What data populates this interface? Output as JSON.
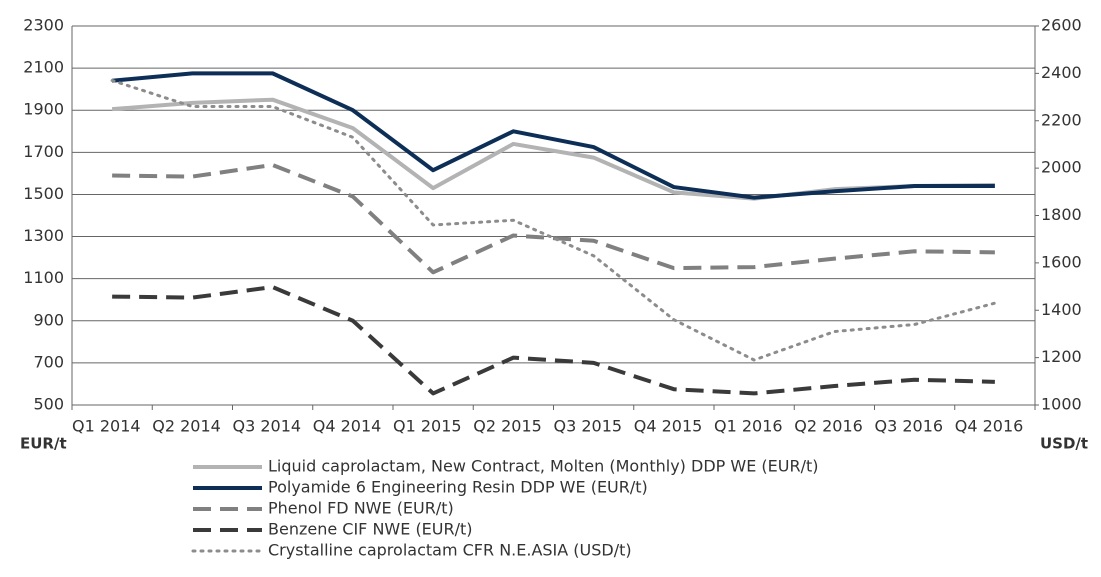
{
  "chart_data": {
    "type": "line",
    "categories": [
      "Q1 2014",
      "Q2 2014",
      "Q3 2014",
      "Q4 2014",
      "Q1 2015",
      "Q2 2015",
      "Q3 2015",
      "Q4 2015",
      "Q1 2016",
      "Q2 2016",
      "Q3 2016",
      "Q4 2016"
    ],
    "y_label": "EUR/t",
    "y2_label": "USD/t",
    "ylim": [
      500,
      2300
    ],
    "yticks": [
      500,
      700,
      900,
      1100,
      1300,
      1500,
      1700,
      1900,
      2100,
      2300
    ],
    "y2lim": [
      1000,
      2600
    ],
    "y2ticks": [
      1000,
      1200,
      1400,
      1600,
      1800,
      2000,
      2200,
      2400,
      2600
    ],
    "grid": true,
    "series": [
      {
        "name": "Liquid caprolactam, New Contract, Molten (Monthly) DDP WE (EUR/t)",
        "color": "#b3b3b3",
        "dash": "solid",
        "values": [
          1905,
          1935,
          1950,
          1815,
          1530,
          1740,
          1675,
          1510,
          1480,
          1525,
          1540,
          1545
        ]
      },
      {
        "name": "Polyamide 6 Engineering Resin DDP WE (EUR/t)",
        "color": "#0d2f57",
        "dash": "solid",
        "values": [
          2040,
          2075,
          2075,
          1900,
          1615,
          1800,
          1725,
          1535,
          1485,
          1515,
          1540,
          1540
        ]
      },
      {
        "name": "Phenol FD NWE (EUR/t)",
        "color": "#808080",
        "dash": "dashed",
        "values": [
          1590,
          1585,
          1640,
          1490,
          1130,
          1305,
          1280,
          1150,
          1155,
          1195,
          1230,
          1225
        ]
      },
      {
        "name": "Benzene CIF NWE (EUR/t)",
        "color": "#3a3a3a",
        "dash": "dashed",
        "values": [
          1015,
          1010,
          1060,
          900,
          555,
          725,
          700,
          575,
          555,
          590,
          620,
          610
        ]
      },
      {
        "name": "Crystalline caprolactam CFR N.E.ASIA (USD/t)",
        "color": "#8c8c8c",
        "dash": "dotted",
        "axis": "y2",
        "values": [
          2370,
          2260,
          2260,
          2130,
          1760,
          1780,
          1630,
          1360,
          1190,
          1310,
          1340,
          1430
        ]
      }
    ]
  }
}
